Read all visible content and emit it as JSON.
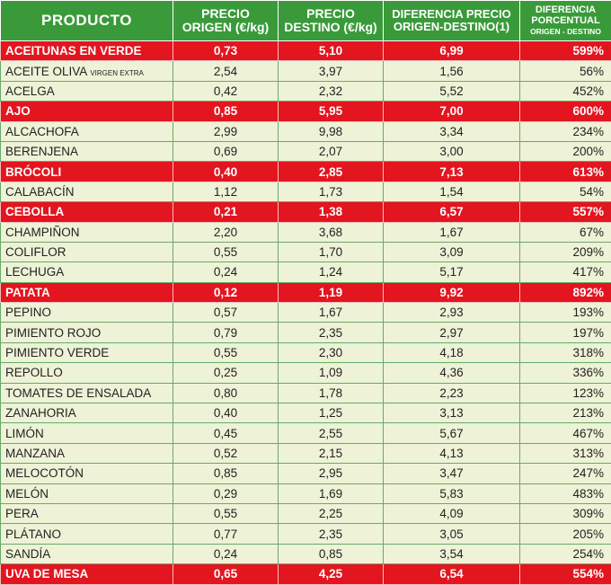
{
  "headers": {
    "producto": "PRODUCTO",
    "origen_l1": "PRECIO",
    "origen_l2": "ORIGEN (€/kg)",
    "destino_l1": "PRECIO",
    "destino_l2": "DESTINO (€/kg)",
    "diferencia_l1": "DIFERENCIA PRECIO",
    "diferencia_l2": "ORIGEN-DESTINO(1)",
    "porcentual_l1": "DIFERENCIA",
    "porcentual_l2": "PORCENTUAL",
    "porcentual_l3": "ORIGEN - DESTINO"
  },
  "colors": {
    "header": "#3a9a3a",
    "highlight": "#e3151f",
    "row": "#eef2d6"
  },
  "rows": [
    {
      "producto": "ACEITUNAS EN VERDE",
      "suffix": "",
      "origen": "0,73",
      "destino": "5,10",
      "diferencia": "6,99",
      "porcentaje": "599%",
      "highlight": true
    },
    {
      "producto": "ACEITE OLIVA",
      "suffix": "VIRGEN EXTRA",
      "origen": "2,54",
      "destino": "3,97",
      "diferencia": "1,56",
      "porcentaje": "56%",
      "highlight": false
    },
    {
      "producto": "ACELGA",
      "suffix": "",
      "origen": "0,42",
      "destino": "2,32",
      "diferencia": "5,52",
      "porcentaje": "452%",
      "highlight": false
    },
    {
      "producto": "AJO",
      "suffix": "",
      "origen": "0,85",
      "destino": "5,95",
      "diferencia": "7,00",
      "porcentaje": "600%",
      "highlight": true
    },
    {
      "producto": "ALCACHOFA",
      "suffix": "",
      "origen": "2,99",
      "destino": "9,98",
      "diferencia": "3,34",
      "porcentaje": "234%",
      "highlight": false
    },
    {
      "producto": "BERENJENA",
      "suffix": "",
      "origen": "0,69",
      "destino": "2,07",
      "diferencia": "3,00",
      "porcentaje": "200%",
      "highlight": false
    },
    {
      "producto": "BRÓCOLI",
      "suffix": "",
      "origen": "0,40",
      "destino": "2,85",
      "diferencia": "7,13",
      "porcentaje": "613%",
      "highlight": true
    },
    {
      "producto": "CALABACÍN",
      "suffix": "",
      "origen": "1,12",
      "destino": "1,73",
      "diferencia": "1,54",
      "porcentaje": "54%",
      "highlight": false
    },
    {
      "producto": "CEBOLLA",
      "suffix": "",
      "origen": "0,21",
      "destino": "1,38",
      "diferencia": "6,57",
      "porcentaje": "557%",
      "highlight": true
    },
    {
      "producto": "CHAMPIÑON",
      "suffix": "",
      "origen": "2,20",
      "destino": "3,68",
      "diferencia": "1,67",
      "porcentaje": "67%",
      "highlight": false
    },
    {
      "producto": "COLIFLOR",
      "suffix": "",
      "origen": "0,55",
      "destino": "1,70",
      "diferencia": "3,09",
      "porcentaje": "209%",
      "highlight": false
    },
    {
      "producto": "LECHUGA",
      "suffix": "",
      "origen": "0,24",
      "destino": "1,24",
      "diferencia": "5,17",
      "porcentaje": "417%",
      "highlight": false
    },
    {
      "producto": "PATATA",
      "suffix": "",
      "origen": "0,12",
      "destino": "1,19",
      "diferencia": "9,92",
      "porcentaje": "892%",
      "highlight": true
    },
    {
      "producto": "PEPINO",
      "suffix": "",
      "origen": "0,57",
      "destino": "1,67",
      "diferencia": "2,93",
      "porcentaje": "193%",
      "highlight": false
    },
    {
      "producto": "PIMIENTO ROJO",
      "suffix": "",
      "origen": "0,79",
      "destino": "2,35",
      "diferencia": "2,97",
      "porcentaje": "197%",
      "highlight": false
    },
    {
      "producto": "PIMIENTO VERDE",
      "suffix": "",
      "origen": "0,55",
      "destino": "2,30",
      "diferencia": "4,18",
      "porcentaje": "318%",
      "highlight": false
    },
    {
      "producto": "REPOLLO",
      "suffix": "",
      "origen": "0,25",
      "destino": "1,09",
      "diferencia": "4,36",
      "porcentaje": "336%",
      "highlight": false
    },
    {
      "producto": "TOMATES DE ENSALADA",
      "suffix": "",
      "origen": "0,80",
      "destino": "1,78",
      "diferencia": "2,23",
      "porcentaje": "123%",
      "highlight": false
    },
    {
      "producto": "ZANAHORIA",
      "suffix": "",
      "origen": "0,40",
      "destino": "1,25",
      "diferencia": "3,13",
      "porcentaje": "213%",
      "highlight": false
    },
    {
      "producto": "LIMÓN",
      "suffix": "",
      "origen": "0,45",
      "destino": "2,55",
      "diferencia": "5,67",
      "porcentaje": "467%",
      "highlight": false
    },
    {
      "producto": "MANZANA",
      "suffix": "",
      "origen": "0,52",
      "destino": "2,15",
      "diferencia": "4,13",
      "porcentaje": "313%",
      "highlight": false
    },
    {
      "producto": "MELOCOTÓN",
      "suffix": "",
      "origen": "0,85",
      "destino": "2,95",
      "diferencia": "3,47",
      "porcentaje": "247%",
      "highlight": false
    },
    {
      "producto": "MELÓN",
      "suffix": "",
      "origen": "0,29",
      "destino": "1,69",
      "diferencia": "5,83",
      "porcentaje": "483%",
      "highlight": false
    },
    {
      "producto": "PERA",
      "suffix": "",
      "origen": "0,55",
      "destino": "2,25",
      "diferencia": "4,09",
      "porcentaje": "309%",
      "highlight": false
    },
    {
      "producto": "PLÁTANO",
      "suffix": "",
      "origen": "0,77",
      "destino": "2,35",
      "diferencia": "3,05",
      "porcentaje": "205%",
      "highlight": false
    },
    {
      "producto": "SANDÍA",
      "suffix": "",
      "origen": "0,24",
      "destino": "0,85",
      "diferencia": "3,54",
      "porcentaje": "254%",
      "highlight": false
    },
    {
      "producto": "UVA DE MESA",
      "suffix": "",
      "origen": "0,65",
      "destino": "4,25",
      "diferencia": "6,54",
      "porcentaje": "554%",
      "highlight": true
    }
  ]
}
